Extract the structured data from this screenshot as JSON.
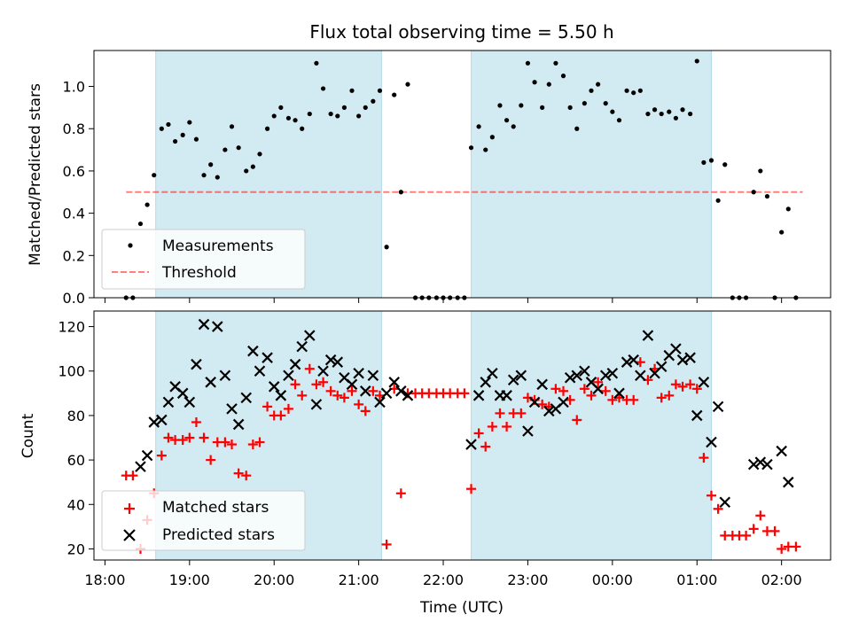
{
  "chart_data": {
    "type": "scatter",
    "title": "Flux total observing time = 5.50 h",
    "xlabel": "Time (UTC)",
    "x_ticks": [
      "18:00",
      "19:00",
      "20:00",
      "21:00",
      "22:00",
      "23:00",
      "00:00",
      "01:00",
      "02:00"
    ],
    "x_range_hours": [
      17.87,
      26.58
    ],
    "shaded_intervals_hours": [
      [
        18.6,
        21.27
      ],
      [
        22.33,
        25.17
      ]
    ],
    "colors": {
      "shade": "#add8e6",
      "measurement": "#000000",
      "threshold": "#ff0000",
      "matched": "#ff0000",
      "predicted": "#000000"
    },
    "top": {
      "ylabel": "Matched/Predicted stars",
      "ylim": [
        0,
        1.17
      ],
      "y_ticks": [
        "0.0",
        "0.2",
        "0.4",
        "0.6",
        "0.8",
        "1.0"
      ],
      "threshold": 0.5,
      "threshold_x_hours": [
        18.25,
        26.25
      ],
      "legend": {
        "position": "lower-left",
        "measurements_label": "Measurements",
        "threshold_label": "Threshold"
      },
      "measurements": [
        [
          18.25,
          0
        ],
        [
          18.33,
          0
        ],
        [
          18.42,
          0.35
        ],
        [
          18.5,
          0.44
        ],
        [
          18.58,
          0.58
        ],
        [
          18.67,
          0.8
        ],
        [
          18.75,
          0.82
        ],
        [
          18.83,
          0.74
        ],
        [
          18.92,
          0.77
        ],
        [
          19.0,
          0.83
        ],
        [
          19.08,
          0.75
        ],
        [
          19.17,
          0.58
        ],
        [
          19.25,
          0.63
        ],
        [
          19.33,
          0.57
        ],
        [
          19.42,
          0.7
        ],
        [
          19.5,
          0.81
        ],
        [
          19.58,
          0.71
        ],
        [
          19.67,
          0.6
        ],
        [
          19.75,
          0.62
        ],
        [
          19.83,
          0.68
        ],
        [
          19.92,
          0.8
        ],
        [
          20.0,
          0.86
        ],
        [
          20.08,
          0.9
        ],
        [
          20.17,
          0.85
        ],
        [
          20.25,
          0.84
        ],
        [
          20.33,
          0.8
        ],
        [
          20.42,
          0.87
        ],
        [
          20.5,
          1.11
        ],
        [
          20.58,
          0.99
        ],
        [
          20.67,
          0.87
        ],
        [
          20.75,
          0.86
        ],
        [
          20.83,
          0.9
        ],
        [
          20.92,
          0.98
        ],
        [
          21.0,
          0.86
        ],
        [
          21.08,
          0.9
        ],
        [
          21.17,
          0.93
        ],
        [
          21.25,
          0.98
        ],
        [
          21.33,
          0.24
        ],
        [
          21.42,
          0.96
        ],
        [
          21.5,
          0.5
        ],
        [
          21.58,
          1.01
        ],
        [
          21.67,
          0
        ],
        [
          21.75,
          0
        ],
        [
          21.83,
          0
        ],
        [
          21.92,
          0
        ],
        [
          22.0,
          0
        ],
        [
          22.08,
          0
        ],
        [
          22.17,
          0
        ],
        [
          22.25,
          0
        ],
        [
          22.33,
          0.71
        ],
        [
          22.42,
          0.81
        ],
        [
          22.5,
          0.7
        ],
        [
          22.58,
          0.76
        ],
        [
          22.67,
          0.91
        ],
        [
          22.75,
          0.84
        ],
        [
          22.83,
          0.81
        ],
        [
          22.92,
          0.91
        ],
        [
          23.0,
          1.11
        ],
        [
          23.08,
          1.02
        ],
        [
          23.17,
          0.9
        ],
        [
          23.25,
          1.01
        ],
        [
          23.33,
          1.11
        ],
        [
          23.42,
          1.05
        ],
        [
          23.5,
          0.9
        ],
        [
          23.58,
          0.8
        ],
        [
          23.67,
          0.92
        ],
        [
          23.75,
          0.98
        ],
        [
          23.83,
          1.01
        ],
        [
          23.92,
          0.92
        ],
        [
          24.0,
          0.88
        ],
        [
          24.08,
          0.84
        ],
        [
          24.17,
          0.98
        ],
        [
          24.25,
          0.97
        ],
        [
          24.33,
          0.98
        ],
        [
          24.42,
          0.87
        ],
        [
          24.5,
          0.89
        ],
        [
          24.58,
          0.87
        ],
        [
          24.67,
          0.88
        ],
        [
          24.75,
          0.85
        ],
        [
          24.83,
          0.89
        ],
        [
          24.92,
          0.87
        ],
        [
          25.0,
          1.12
        ],
        [
          25.08,
          0.64
        ],
        [
          25.17,
          0.65
        ],
        [
          25.25,
          0.46
        ],
        [
          25.33,
          0.63
        ],
        [
          25.42,
          0
        ],
        [
          25.5,
          0
        ],
        [
          25.58,
          0
        ],
        [
          25.67,
          0.5
        ],
        [
          25.75,
          0.6
        ],
        [
          25.83,
          0.48
        ],
        [
          25.92,
          0
        ],
        [
          26.0,
          0.31
        ],
        [
          26.08,
          0.42
        ],
        [
          26.17,
          0
        ]
      ]
    },
    "bottom": {
      "ylabel": "Count",
      "ylim": [
        15,
        127
      ],
      "y_ticks": [
        "20",
        "40",
        "60",
        "80",
        "100",
        "120"
      ],
      "legend": {
        "position": "lower-left",
        "matched_label": "Matched stars",
        "predicted_label": "Predicted stars"
      },
      "matched": [
        [
          18.25,
          53
        ],
        [
          18.33,
          53
        ],
        [
          18.42,
          20
        ],
        [
          18.5,
          33
        ],
        [
          18.58,
          45
        ],
        [
          18.67,
          62
        ],
        [
          18.75,
          70
        ],
        [
          18.83,
          69
        ],
        [
          18.92,
          69
        ],
        [
          19.0,
          70
        ],
        [
          19.08,
          77
        ],
        [
          19.17,
          70
        ],
        [
          19.25,
          60
        ],
        [
          19.33,
          68
        ],
        [
          19.42,
          68
        ],
        [
          19.5,
          67
        ],
        [
          19.58,
          54
        ],
        [
          19.67,
          53
        ],
        [
          19.75,
          67
        ],
        [
          19.83,
          68
        ],
        [
          19.92,
          84
        ],
        [
          20.0,
          80
        ],
        [
          20.08,
          80
        ],
        [
          20.17,
          83
        ],
        [
          20.25,
          94
        ],
        [
          20.33,
          89
        ],
        [
          20.42,
          101
        ],
        [
          20.5,
          94
        ],
        [
          20.58,
          95
        ],
        [
          20.67,
          91
        ],
        [
          20.75,
          89
        ],
        [
          20.83,
          88
        ],
        [
          20.92,
          91
        ],
        [
          21.0,
          85
        ],
        [
          21.08,
          82
        ],
        [
          21.17,
          91
        ],
        [
          21.25,
          89
        ],
        [
          21.33,
          22
        ],
        [
          21.42,
          92
        ],
        [
          21.5,
          45
        ],
        [
          21.58,
          90
        ],
        [
          21.67,
          90
        ],
        [
          21.75,
          90
        ],
        [
          21.83,
          90
        ],
        [
          21.92,
          90
        ],
        [
          22.0,
          90
        ],
        [
          22.08,
          90
        ],
        [
          22.17,
          90
        ],
        [
          22.25,
          90
        ],
        [
          22.33,
          47
        ],
        [
          22.42,
          72
        ],
        [
          22.5,
          66
        ],
        [
          22.58,
          75
        ],
        [
          22.67,
          81
        ],
        [
          22.75,
          75
        ],
        [
          22.83,
          81
        ],
        [
          22.92,
          81
        ],
        [
          23.0,
          88
        ],
        [
          23.08,
          87
        ],
        [
          23.17,
          85
        ],
        [
          23.25,
          84
        ],
        [
          23.33,
          92
        ],
        [
          23.42,
          91
        ],
        [
          23.5,
          87
        ],
        [
          23.58,
          78
        ],
        [
          23.67,
          92
        ],
        [
          23.75,
          89
        ],
        [
          23.83,
          95
        ],
        [
          23.92,
          91
        ],
        [
          24.0,
          87
        ],
        [
          24.08,
          88
        ],
        [
          24.17,
          87
        ],
        [
          24.25,
          87
        ],
        [
          24.33,
          104
        ],
        [
          24.42,
          96
        ],
        [
          24.5,
          101
        ],
        [
          24.58,
          88
        ],
        [
          24.67,
          89
        ],
        [
          24.75,
          94
        ],
        [
          24.83,
          93
        ],
        [
          24.92,
          94
        ],
        [
          25.0,
          92
        ],
        [
          25.08,
          61
        ],
        [
          25.17,
          44
        ],
        [
          25.25,
          38
        ],
        [
          25.33,
          26
        ],
        [
          25.42,
          26
        ],
        [
          25.5,
          26
        ],
        [
          25.58,
          26
        ],
        [
          25.67,
          29
        ],
        [
          25.75,
          35
        ],
        [
          25.83,
          28
        ],
        [
          25.92,
          28
        ],
        [
          26.0,
          20
        ],
        [
          26.08,
          21
        ],
        [
          26.17,
          21
        ]
      ],
      "predicted": [
        [
          18.42,
          57
        ],
        [
          18.5,
          62
        ],
        [
          18.58,
          77
        ],
        [
          18.67,
          78
        ],
        [
          18.75,
          86
        ],
        [
          18.83,
          93
        ],
        [
          18.92,
          90
        ],
        [
          19.0,
          86
        ],
        [
          19.08,
          103
        ],
        [
          19.17,
          121
        ],
        [
          19.25,
          95
        ],
        [
          19.33,
          120
        ],
        [
          19.42,
          98
        ],
        [
          19.5,
          83
        ],
        [
          19.58,
          76
        ],
        [
          19.67,
          88
        ],
        [
          19.75,
          109
        ],
        [
          19.83,
          100
        ],
        [
          19.92,
          106
        ],
        [
          20.0,
          93
        ],
        [
          20.08,
          89
        ],
        [
          20.17,
          98
        ],
        [
          20.25,
          103
        ],
        [
          20.33,
          111
        ],
        [
          20.42,
          116
        ],
        [
          20.5,
          85
        ],
        [
          20.58,
          100
        ],
        [
          20.67,
          105
        ],
        [
          20.75,
          104
        ],
        [
          20.83,
          97
        ],
        [
          20.92,
          94
        ],
        [
          21.0,
          99
        ],
        [
          21.08,
          91
        ],
        [
          21.17,
          98
        ],
        [
          21.25,
          86
        ],
        [
          21.33,
          90
        ],
        [
          21.42,
          95
        ],
        [
          21.5,
          91
        ],
        [
          21.58,
          89
        ],
        [
          22.33,
          67
        ],
        [
          22.42,
          89
        ],
        [
          22.5,
          95
        ],
        [
          22.58,
          99
        ],
        [
          22.67,
          89
        ],
        [
          22.75,
          89
        ],
        [
          22.83,
          96
        ],
        [
          22.92,
          98
        ],
        [
          23.0,
          73
        ],
        [
          23.08,
          86
        ],
        [
          23.17,
          94
        ],
        [
          23.25,
          82
        ],
        [
          23.33,
          83
        ],
        [
          23.42,
          86
        ],
        [
          23.5,
          97
        ],
        [
          23.58,
          98
        ],
        [
          23.67,
          100
        ],
        [
          23.75,
          95
        ],
        [
          23.83,
          92
        ],
        [
          23.92,
          98
        ],
        [
          24.0,
          99
        ],
        [
          24.08,
          90
        ],
        [
          24.17,
          104
        ],
        [
          24.25,
          105
        ],
        [
          24.33,
          98
        ],
        [
          24.42,
          116
        ],
        [
          24.5,
          99
        ],
        [
          24.58,
          102
        ],
        [
          24.67,
          107
        ],
        [
          24.75,
          110
        ],
        [
          24.83,
          105
        ],
        [
          24.92,
          106
        ],
        [
          25.0,
          80
        ],
        [
          25.08,
          95
        ],
        [
          25.17,
          68
        ],
        [
          25.25,
          84
        ],
        [
          25.33,
          41
        ],
        [
          25.67,
          58
        ],
        [
          25.75,
          59
        ],
        [
          25.83,
          58
        ],
        [
          26.0,
          64
        ],
        [
          26.08,
          50
        ]
      ]
    }
  }
}
